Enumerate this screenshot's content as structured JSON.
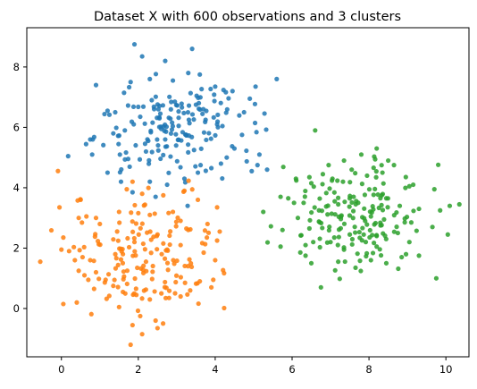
{
  "chart_data": {
    "type": "scatter",
    "title": "Dataset X with 600 observations and 3 clusters",
    "xlabel": "",
    "ylabel": "",
    "xlim": [
      -0.9,
      10.6
    ],
    "ylim": [
      -1.6,
      9.3
    ],
    "xticks": [
      0,
      2,
      4,
      6,
      8,
      10
    ],
    "yticks": [
      0,
      2,
      4,
      6,
      8
    ],
    "grid": false,
    "legend": "none",
    "series": [
      {
        "color": "#1f77b4",
        "count": 200,
        "center": [
          2.8,
          6.0
        ],
        "spread": [
          0.95,
          0.85
        ],
        "points": [
          [
            1.9,
            8.75
          ],
          [
            3.4,
            8.6
          ],
          [
            2.1,
            8.35
          ],
          [
            2.7,
            8.2
          ],
          [
            0.9,
            7.4
          ],
          [
            1.8,
            7.5
          ],
          [
            2.3,
            7.6
          ],
          [
            2.9,
            7.55
          ],
          [
            3.3,
            7.8
          ],
          [
            3.6,
            7.75
          ],
          [
            4.0,
            7.35
          ],
          [
            5.6,
            7.6
          ],
          [
            5.05,
            7.35
          ],
          [
            4.45,
            7.2
          ],
          [
            4.9,
            6.95
          ],
          [
            1.2,
            6.55
          ],
          [
            1.4,
            6.5
          ],
          [
            4.75,
            6.5
          ],
          [
            0.75,
            5.6
          ],
          [
            0.8,
            5.1
          ],
          [
            1.2,
            4.5
          ],
          [
            1.55,
            4.2
          ],
          [
            1.85,
            3.85
          ],
          [
            2.3,
            4.2
          ],
          [
            2.45,
            3.7
          ],
          [
            2.75,
            4.1
          ],
          [
            3.2,
            4.3
          ],
          [
            3.55,
            4.5
          ],
          [
            3.9,
            4.65
          ],
          [
            4.15,
            4.8
          ],
          [
            4.3,
            5.0
          ],
          [
            4.5,
            5.3
          ],
          [
            4.95,
            4.55
          ],
          [
            5.1,
            4.75
          ],
          [
            5.35,
            4.6
          ],
          [
            5.15,
            5.1
          ],
          [
            2.05,
            6.35
          ],
          [
            2.55,
            6.3
          ],
          [
            3.05,
            6.05
          ],
          [
            3.25,
            5.75
          ],
          [
            2.7,
            5.6
          ],
          [
            2.2,
            5.2
          ],
          [
            3.45,
            5.25
          ],
          [
            3.75,
            6.25
          ],
          [
            4.05,
            6.1
          ],
          [
            1.65,
            5.9
          ],
          [
            1.35,
            5.8
          ],
          [
            2.95,
            6.85
          ],
          [
            3.5,
            6.75
          ],
          [
            2.35,
            6.9
          ]
        ]
      },
      {
        "color": "#ff7f0e",
        "count": 200,
        "center": [
          2.3,
          2.0
        ],
        "spread": [
          1.0,
          1.05
        ],
        "points": [
          [
            1.85,
            4.2
          ],
          [
            1.7,
            3.95
          ],
          [
            2.1,
            3.8
          ],
          [
            2.65,
            3.75
          ],
          [
            3.2,
            3.9
          ],
          [
            3.55,
            3.6
          ],
          [
            4.05,
            3.35
          ],
          [
            -0.05,
            3.35
          ],
          [
            0.45,
            3.0
          ],
          [
            0.65,
            3.05
          ],
          [
            0.9,
            3.0
          ],
          [
            1.0,
            2.8
          ],
          [
            1.5,
            3.2
          ],
          [
            2.3,
            3.1
          ],
          [
            2.9,
            3.2
          ],
          [
            3.8,
            2.8
          ],
          [
            4.05,
            2.25
          ],
          [
            4.0,
            1.6
          ],
          [
            3.7,
            1.85
          ],
          [
            0.05,
            2.35
          ],
          [
            0.0,
            1.95
          ],
          [
            0.2,
            1.9
          ],
          [
            0.35,
            1.6
          ],
          [
            0.55,
            1.7
          ],
          [
            0.75,
            1.6
          ],
          [
            -0.55,
            1.55
          ],
          [
            0.45,
            1.25
          ],
          [
            0.6,
            1.1
          ],
          [
            0.7,
            0.95
          ],
          [
            0.9,
            1.2
          ],
          [
            0.85,
            0.65
          ],
          [
            1.15,
            0.95
          ],
          [
            1.35,
            0.75
          ],
          [
            1.6,
            0.55
          ],
          [
            1.95,
            0.45
          ],
          [
            2.3,
            0.3
          ],
          [
            2.6,
            0.5
          ],
          [
            2.8,
            0.35
          ],
          [
            3.1,
            0.4
          ],
          [
            3.35,
            0.6
          ],
          [
            3.6,
            0.9
          ],
          [
            3.95,
            0.95
          ],
          [
            3.9,
            0.7
          ],
          [
            0.05,
            0.15
          ],
          [
            0.4,
            0.2
          ],
          [
            1.5,
            0.05
          ],
          [
            2.05,
            -0.25
          ],
          [
            2.45,
            -0.4
          ],
          [
            2.5,
            -0.65
          ],
          [
            1.85,
            -0.55
          ],
          [
            2.1,
            -0.85
          ],
          [
            1.8,
            -1.2
          ],
          [
            1.45,
            2.55
          ],
          [
            1.9,
            2.2
          ],
          [
            2.5,
            2.45
          ],
          [
            2.75,
            1.95
          ],
          [
            3.1,
            2.1
          ],
          [
            2.2,
            1.55
          ],
          [
            1.6,
            1.8
          ],
          [
            3.3,
            2.6
          ]
        ]
      },
      {
        "color": "#2ca02c",
        "count": 200,
        "center": [
          7.9,
          3.0
        ],
        "spread": [
          0.9,
          0.85
        ],
        "points": [
          [
            6.6,
            5.9
          ],
          [
            8.2,
            5.3
          ],
          [
            7.8,
            5.1
          ],
          [
            7.35,
            4.9
          ],
          [
            8.5,
            4.9
          ],
          [
            8.65,
            4.75
          ],
          [
            6.95,
            4.75
          ],
          [
            7.55,
            4.6
          ],
          [
            6.8,
            4.45
          ],
          [
            6.45,
            4.35
          ],
          [
            6.1,
            4.3
          ],
          [
            6.5,
            4.15
          ],
          [
            7.05,
            4.3
          ],
          [
            7.95,
            4.4
          ],
          [
            8.35,
            4.5
          ],
          [
            9.15,
            4.1
          ],
          [
            9.05,
            4.05
          ],
          [
            5.7,
            3.7
          ],
          [
            5.9,
            3.65
          ],
          [
            6.05,
            3.5
          ],
          [
            6.3,
            3.5
          ],
          [
            5.25,
            3.2
          ],
          [
            6.15,
            3.0
          ],
          [
            6.7,
            3.25
          ],
          [
            7.2,
            3.45
          ],
          [
            7.6,
            3.7
          ],
          [
            8.45,
            3.65
          ],
          [
            8.8,
            3.4
          ],
          [
            9.3,
            3.3
          ],
          [
            9.1,
            2.85
          ],
          [
            9.7,
            3.95
          ],
          [
            10.1,
            3.4
          ],
          [
            10.35,
            3.45
          ],
          [
            9.85,
            3.25
          ],
          [
            9.65,
            2.7
          ],
          [
            5.75,
            2.6
          ],
          [
            6.45,
            2.65
          ],
          [
            6.55,
            2.2
          ],
          [
            5.7,
            2.05
          ],
          [
            6.35,
            2.1
          ],
          [
            7.0,
            2.2
          ],
          [
            7.5,
            2.45
          ],
          [
            7.9,
            2.9
          ],
          [
            8.05,
            3.05
          ],
          [
            8.3,
            2.75
          ],
          [
            8.75,
            2.5
          ],
          [
            9.05,
            2.2
          ],
          [
            10.05,
            2.45
          ],
          [
            6.35,
            1.75
          ],
          [
            6.5,
            1.5
          ],
          [
            7.2,
            1.55
          ],
          [
            7.65,
            1.35
          ],
          [
            8.05,
            1.6
          ],
          [
            8.45,
            1.5
          ],
          [
            8.85,
            1.7
          ],
          [
            9.3,
            1.75
          ],
          [
            9.75,
            1.0
          ],
          [
            6.75,
            0.7
          ],
          [
            7.35,
            1.95
          ],
          [
            8.2,
            2.05
          ]
        ]
      }
    ]
  }
}
